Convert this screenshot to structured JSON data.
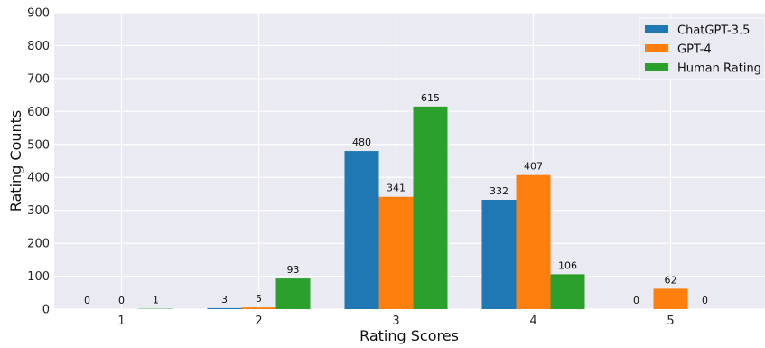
{
  "chart_data": {
    "type": "bar",
    "title": "",
    "xlabel": "Rating Scores",
    "ylabel": "Rating Counts",
    "categories": [
      "1",
      "2",
      "3",
      "4",
      "5"
    ],
    "series": [
      {
        "name": "ChatGPT-3.5",
        "color": "#1f77b4",
        "values": [
          0,
          3,
          480,
          332,
          0
        ]
      },
      {
        "name": "GPT-4",
        "color": "#ff7f0e",
        "values": [
          0,
          5,
          341,
          407,
          62
        ]
      },
      {
        "name": "Human Rating",
        "color": "#2ca02c",
        "values": [
          1,
          93,
          615,
          106,
          0
        ]
      }
    ],
    "ylim": [
      0,
      900
    ],
    "yticks": [
      0,
      100,
      200,
      300,
      400,
      500,
      600,
      700,
      800,
      900
    ],
    "grid": true,
    "legend_position": "top-right",
    "plot_background": "#eaeaf2",
    "grid_color": "#ffffff"
  }
}
